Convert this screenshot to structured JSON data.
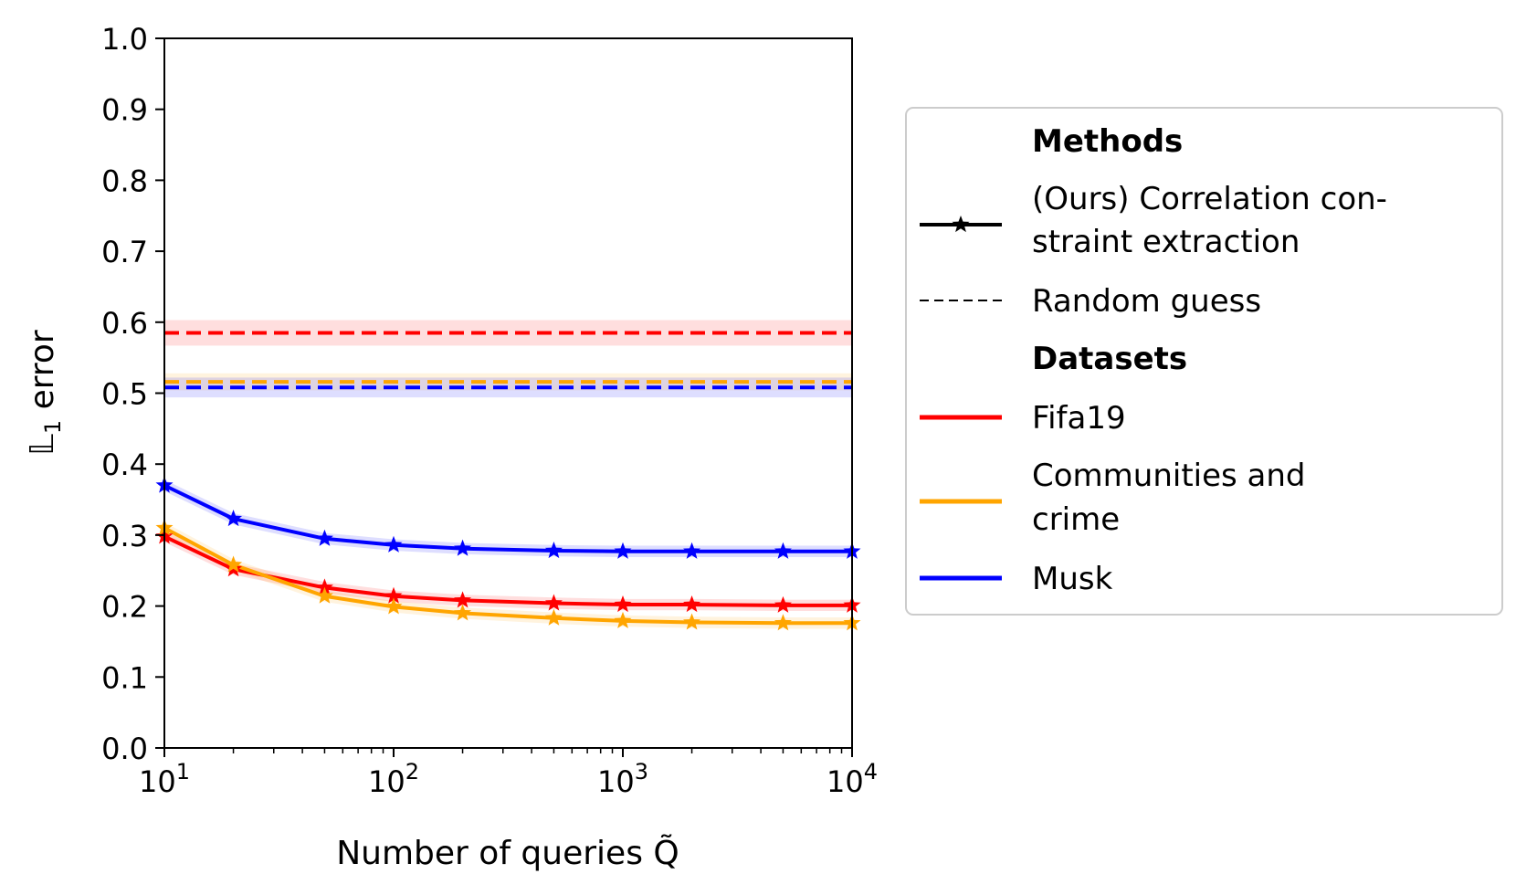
{
  "chart_data": {
    "type": "line",
    "xscale": "log",
    "xlim": [
      10,
      10000
    ],
    "ylim": [
      0.0,
      1.0
    ],
    "xticks": [
      10,
      100,
      1000,
      10000
    ],
    "xtick_labels": [
      {
        "base": "10",
        "exp": "1"
      },
      {
        "base": "10",
        "exp": "2"
      },
      {
        "base": "10",
        "exp": "3"
      },
      {
        "base": "10",
        "exp": "4"
      }
    ],
    "yticks": [
      "0.0",
      "0.1",
      "0.2",
      "0.3",
      "0.4",
      "0.5",
      "0.6",
      "0.7",
      "0.8",
      "0.9",
      "1.0"
    ],
    "xlabel": "Number of queries Q̃",
    "ylabel": {
      "main": "𝕃",
      "sub": "1",
      "rest": " error"
    },
    "x": [
      10,
      20,
      50,
      100,
      200,
      500,
      1000,
      2000,
      5000,
      10000
    ],
    "series": [
      {
        "name": "Fifa19",
        "color": "#ff0000",
        "values": [
          0.298,
          0.252,
          0.226,
          0.214,
          0.208,
          0.204,
          0.202,
          0.202,
          0.201,
          0.201
        ],
        "random_guess": 0.585,
        "random_band": 0.018
      },
      {
        "name": "Communities and crime",
        "color": "#ffa500",
        "values": [
          0.31,
          0.258,
          0.214,
          0.199,
          0.19,
          0.183,
          0.179,
          0.177,
          0.176,
          0.176
        ],
        "random_guess": 0.516,
        "random_band": 0.012
      },
      {
        "name": "Musk",
        "color": "#0000ff",
        "values": [
          0.37,
          0.323,
          0.295,
          0.286,
          0.281,
          0.278,
          0.277,
          0.277,
          0.277,
          0.277
        ],
        "random_guess": 0.508,
        "random_band": 0.014
      }
    ],
    "legend": {
      "placement": "right",
      "methods_title": "Methods",
      "method_ours_line1": "(Ours) Correlation con-",
      "method_ours_line2": "straint extraction",
      "method_random": "Random guess",
      "datasets_title": "Datasets",
      "dataset_1": "Fifa19",
      "dataset_2_line1": "Communities and",
      "dataset_2_line2": "crime",
      "dataset_3": "Musk"
    }
  }
}
